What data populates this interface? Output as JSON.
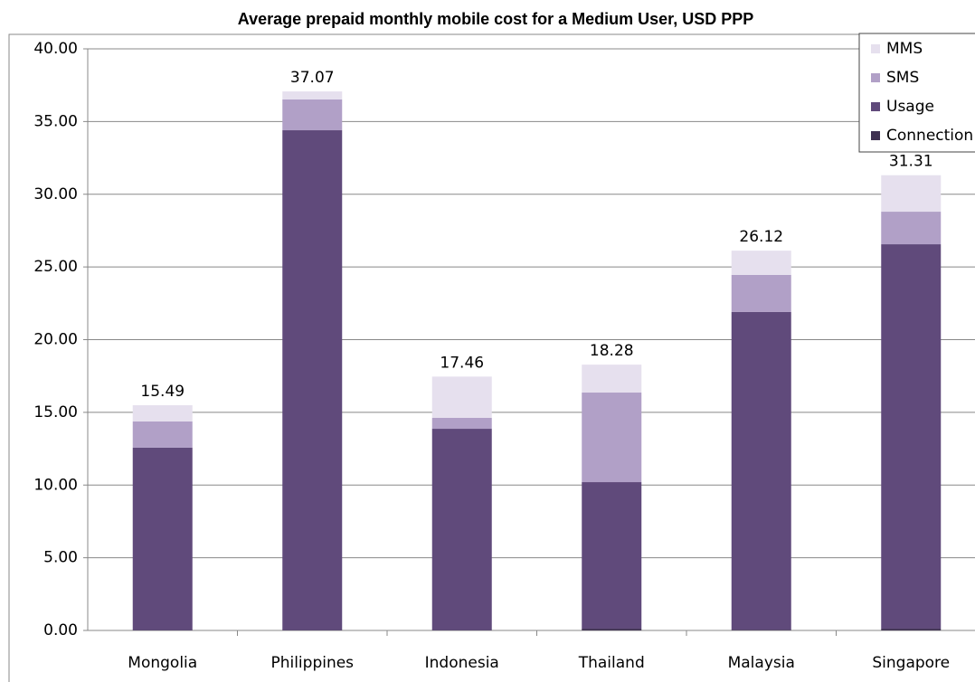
{
  "chart_data": {
    "type": "stacked_bar",
    "title": "Average prepaid monthly mobile cost for a Medium User, USD PPP",
    "categories": [
      "Mongolia",
      "Philippines",
      "Indonesia",
      "Thailand",
      "Malaysia",
      "Singapore"
    ],
    "series": [
      {
        "name": "Connection",
        "color": "#3f3151",
        "values": [
          0.02,
          0.02,
          0.02,
          0.12,
          0.05,
          0.12
        ]
      },
      {
        "name": "Usage",
        "color": "#604a7b",
        "values": [
          12.55,
          34.38,
          13.85,
          10.08,
          21.85,
          26.44
        ]
      },
      {
        "name": "SMS",
        "color": "#b1a0c7",
        "values": [
          1.8,
          2.12,
          0.75,
          6.16,
          2.55,
          2.24
        ]
      },
      {
        "name": "MMS",
        "color": "#e6e0ee",
        "values": [
          1.12,
          0.55,
          2.84,
          1.92,
          1.67,
          2.51
        ]
      }
    ],
    "totals": [
      15.49,
      37.07,
      17.46,
      18.28,
      26.12,
      31.31
    ],
    "ylim": [
      0,
      40
    ],
    "yticks": [
      {
        "value": 0,
        "label": "0.00"
      },
      {
        "value": 5,
        "label": "5.00"
      },
      {
        "value": 10,
        "label": "10.00"
      },
      {
        "value": 15,
        "label": "15.00"
      },
      {
        "value": 20,
        "label": "20.00"
      },
      {
        "value": 25,
        "label": "25.00"
      },
      {
        "value": 30,
        "label": "30.00"
      },
      {
        "value": 35,
        "label": "35.00"
      },
      {
        "value": 40,
        "label": "40.00"
      }
    ],
    "grid": true,
    "legend": "top-right"
  }
}
